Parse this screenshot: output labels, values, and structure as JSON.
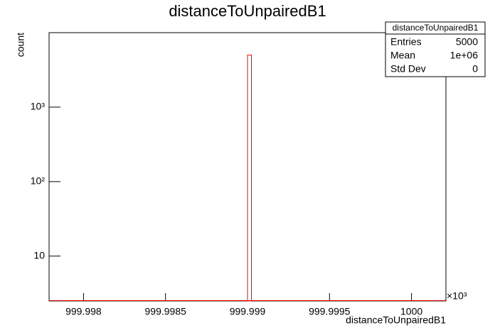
{
  "chart_data": {
    "type": "histogram",
    "title": "distanceToUnpairedB1",
    "bins": [
      999.999,
      999.999024
    ],
    "values": [
      5000
    ],
    "color": "#ff0000",
    "xlim": [
      999.99779,
      1000.00021
    ],
    "xticks": [
      999.998,
      999.9985,
      999.999,
      999.9995,
      1000
    ],
    "x_multiplier": "×10³",
    "ylim": [
      2.5,
      10000
    ],
    "log_y": true,
    "yticks": [
      10,
      {
        "value": 100,
        "label": "10²"
      },
      {
        "value": 1000,
        "label": "10³"
      }
    ],
    "xlabel": "distanceToUnpairedB1",
    "ylabel": "count",
    "stats": {
      "title": "distanceToUnpairedB1",
      "rows": [
        [
          "Entries",
          5000
        ],
        [
          "Mean",
          "1e+06"
        ],
        [
          "Std Dev",
          0
        ]
      ]
    }
  }
}
